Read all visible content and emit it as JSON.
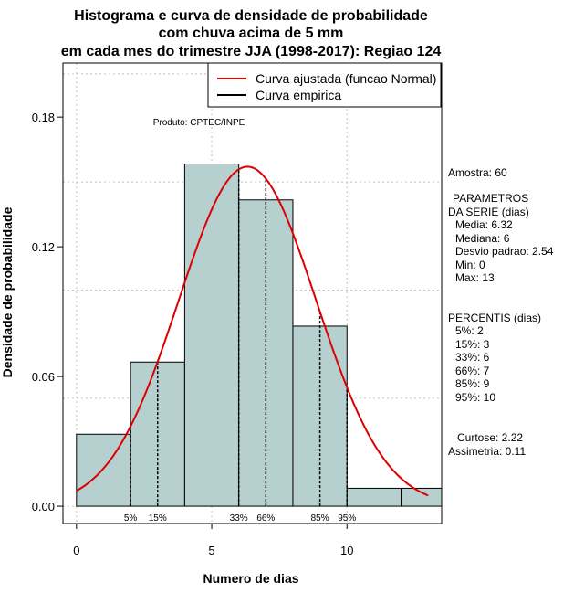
{
  "chart_data": {
    "type": "bar",
    "title_lines": [
      "Histograma e curva de densidade de probabilidade",
      "com chuva acima de 5 mm",
      "em cada mes do trimestre JJA (1998-2017): Regiao 124"
    ],
    "xlabel": "Numero de dias",
    "ylabel": "Densidade de probabilidade",
    "xlim": [
      -0.5,
      13.5
    ],
    "ylim": [
      -0.008,
      0.205
    ],
    "x_ticks": [
      0,
      5,
      10
    ],
    "y_ticks": [
      0.0,
      0.06,
      0.12,
      0.18
    ],
    "y_tick_labels": [
      "0.00",
      "0.06",
      "0.12",
      "0.18"
    ],
    "grid": true,
    "bars": [
      {
        "x0": 0,
        "x1": 2,
        "value": 0.0333
      },
      {
        "x0": 2,
        "x1": 4,
        "value": 0.0667
      },
      {
        "x0": 4,
        "x1": 6,
        "value": 0.1583
      },
      {
        "x0": 6,
        "x1": 8,
        "value": 0.1417
      },
      {
        "x0": 8,
        "x1": 10,
        "value": 0.0833
      },
      {
        "x0": 10,
        "x1": 12,
        "value": 0.0083
      },
      {
        "x0": 12,
        "x1": 14,
        "value": 0.0083
      }
    ],
    "normal_curve": {
      "mean": 6.32,
      "sd": 2.54,
      "x_range": [
        0,
        13
      ]
    },
    "percentile_markers": [
      {
        "label": "5%",
        "x": 2
      },
      {
        "label": "15%",
        "x": 3
      },
      {
        "label": "33%",
        "x": 6
      },
      {
        "label": "66%",
        "x": 7
      },
      {
        "label": "85%",
        "x": 9
      },
      {
        "label": "95%",
        "x": 10
      }
    ],
    "legend": {
      "placement": "top-right",
      "entries": [
        {
          "label": "Curva ajustada (funcao Normal)",
          "color": "#dd0000"
        },
        {
          "label": "Curva empirica",
          "color": "#000000"
        }
      ]
    },
    "annotation": "Produto: CPTEC/INPE",
    "colors": {
      "bar_fill": "#b6cfcf",
      "curve": "#dd0000",
      "grid": "#c0c0c0"
    }
  },
  "side_panel": {
    "amostra": "Amostra: 60",
    "parametros_title": "PARAMETROS",
    "parametros_sub": "DA SERIE (dias)",
    "parametros": [
      "Media: 6.32",
      "Mediana: 6",
      "Desvio padrao: 2.54",
      "Min: 0",
      "Max: 13"
    ],
    "percentis_title": "PERCENTIS (dias)",
    "percentis": [
      "5%: 2",
      "15%: 3",
      "33%: 6",
      "66%: 7",
      "85%: 9",
      "95%: 10"
    ],
    "curtose": "Curtose: 2.22",
    "assimetria": "Assimetria: 0.11"
  }
}
